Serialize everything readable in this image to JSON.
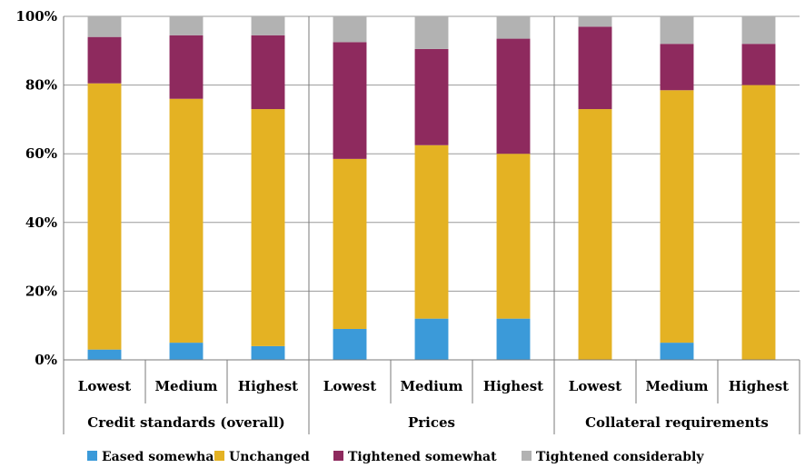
{
  "chart_data": {
    "type": "bar",
    "stacked": true,
    "title": "",
    "xlabel": "",
    "ylabel": "",
    "ylim": [
      0,
      100
    ],
    "yticks": [
      "0%",
      "20%",
      "40%",
      "60%",
      "80%",
      "100%"
    ],
    "grid": true,
    "legend_position": "bottom",
    "groups": [
      {
        "name": "Credit standards (overall)",
        "categories": [
          "Lowest",
          "Medium",
          "Highest"
        ]
      },
      {
        "name": "Prices",
        "categories": [
          "Lowest",
          "Medium",
          "Highest"
        ]
      },
      {
        "name": "Collateral requirements",
        "categories": [
          "Lowest",
          "Medium",
          "Highest"
        ]
      }
    ],
    "series": [
      {
        "name": "Eased somewhat",
        "color": "#3b9ad9",
        "values": [
          3,
          5,
          4,
          9,
          12,
          12,
          0,
          5,
          0
        ]
      },
      {
        "name": "Unchanged",
        "color": "#e4b223",
        "values": [
          77.5,
          71,
          69,
          49.5,
          50.5,
          48,
          73,
          73.5,
          80
        ]
      },
      {
        "name": "Tightened somewhat",
        "color": "#8e2a5e",
        "values": [
          13.5,
          18.5,
          21.5,
          34,
          28,
          33.5,
          24,
          13.5,
          12
        ]
      },
      {
        "name": "Tightened considerably",
        "color": "#b2b2b2",
        "values": [
          6,
          5.5,
          5.5,
          7.5,
          9.5,
          6.5,
          3,
          8,
          8
        ]
      }
    ]
  }
}
